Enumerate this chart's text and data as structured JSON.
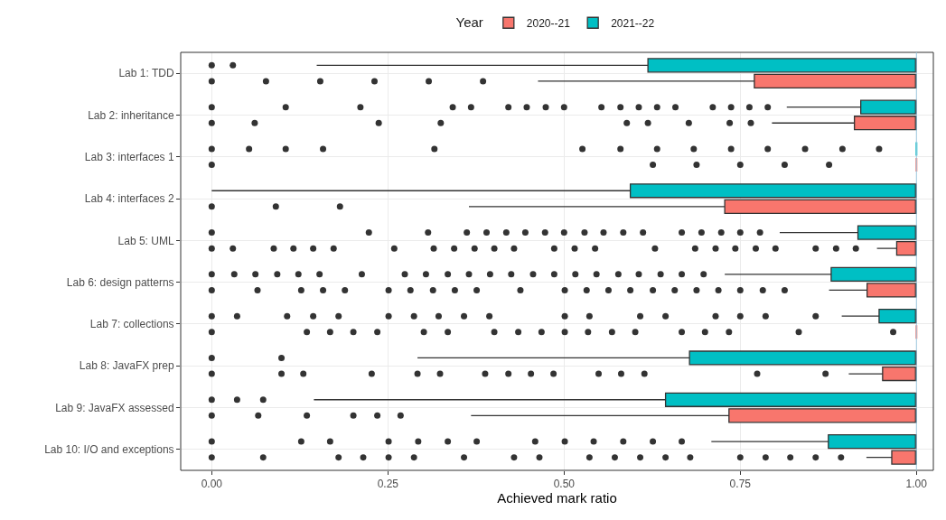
{
  "chart_data": {
    "type": "box",
    "orientation": "horizontal",
    "xlabel": "Achieved mark ratio",
    "legend_title": "Year",
    "legend": "top",
    "grid": true,
    "marker": "circle",
    "categories": [
      "Lab 1: TDD",
      "Lab 2: inheritance",
      "Lab 3: interfaces 1",
      "Lab 4: interfaces 2",
      "Lab 5: UML",
      "Lab 6: design patterns",
      "Lab 7: collections",
      "Lab 8: JavaFX prep",
      "Lab 9: JavaFX assessed",
      "Lab 10: I/O and exceptions"
    ],
    "xlim": [
      -0.044,
      1.024
    ],
    "xticks": [
      {
        "value": 0,
        "label": "0.00"
      },
      {
        "value": 0.25,
        "label": "0.25"
      },
      {
        "value": 0.5,
        "label": "0.50"
      },
      {
        "value": 0.75,
        "label": "0.75"
      },
      {
        "value": 1,
        "label": "1.00"
      }
    ],
    "ref_lines": [
      {
        "axis": "x",
        "value": 1,
        "color": "#9ecae1"
      }
    ],
    "series": [
      {
        "name": "2020--21",
        "color": "#f8766d",
        "boxes": [
          {
            "low": 0.463,
            "q1": 0.77,
            "median": 1,
            "q3": 1,
            "outliers": [
              0,
              0.077,
              0.154,
              0.231,
              0.308,
              0.385
            ]
          },
          {
            "low": 0.795,
            "q1": 0.912,
            "median": 1,
            "q3": 1,
            "outliers": [
              0,
              0.061,
              0.237,
              0.325,
              0.589,
              0.619,
              0.677,
              0.735,
              0.765
            ]
          },
          {
            "low": 1,
            "q1": 1,
            "median": 1,
            "q3": 1,
            "outliers": [
              0,
              0.626,
              0.688,
              0.75,
              0.813,
              0.876
            ]
          },
          {
            "low": 0.365,
            "q1": 0.728,
            "median": 1,
            "q3": 1,
            "outliers": [
              0,
              0.091,
              0.182
            ]
          },
          {
            "low": 0.944,
            "q1": 0.972,
            "median": 1,
            "q3": 1,
            "outliers": [
              0,
              0.03,
              0.088,
              0.116,
              0.144,
              0.173,
              0.259,
              0.315,
              0.344,
              0.373,
              0.401,
              0.429,
              0.486,
              0.515,
              0.544,
              0.629,
              0.686,
              0.715,
              0.743,
              0.772,
              0.8,
              0.857,
              0.886,
              0.914
            ]
          },
          {
            "low": 0.876,
            "q1": 0.93,
            "median": 1,
            "q3": 1,
            "outliers": [
              0,
              0.065,
              0.127,
              0.158,
              0.189,
              0.251,
              0.282,
              0.314,
              0.345,
              0.376,
              0.438,
              0.501,
              0.532,
              0.563,
              0.594,
              0.626,
              0.657,
              0.688,
              0.719,
              0.75,
              0.782,
              0.813
            ]
          },
          {
            "low": 1,
            "q1": 1,
            "median": 1,
            "q3": 1,
            "outliers": [
              0,
              0.135,
              0.168,
              0.201,
              0.235,
              0.301,
              0.335,
              0.401,
              0.435,
              0.468,
              0.501,
              0.534,
              0.568,
              0.601,
              0.667,
              0.7,
              0.734,
              0.833,
              0.967
            ]
          },
          {
            "low": 0.904,
            "q1": 0.952,
            "median": 1,
            "q3": 1,
            "outliers": [
              0,
              0.099,
              0.13,
              0.227,
              0.292,
              0.324,
              0.388,
              0.421,
              0.453,
              0.485,
              0.549,
              0.581,
              0.614,
              0.774,
              0.871
            ]
          },
          {
            "low": 0.368,
            "q1": 0.734,
            "median": 1,
            "q3": 1,
            "outliers": [
              0,
              0.066,
              0.135,
              0.201,
              0.235,
              0.268
            ]
          },
          {
            "low": 0.929,
            "q1": 0.965,
            "median": 1,
            "q3": 1,
            "outliers": [
              0,
              0.073,
              0.18,
              0.215,
              0.251,
              0.287,
              0.358,
              0.429,
              0.465,
              0.536,
              0.572,
              0.608,
              0.644,
              0.679,
              0.75,
              0.786,
              0.821,
              0.857,
              0.893
            ]
          }
        ]
      },
      {
        "name": "2021--22",
        "color": "#00bfc4",
        "boxes": [
          {
            "low": 0.149,
            "q1": 0.619,
            "median": 1,
            "q3": 1,
            "outliers": [
              0,
              0.03
            ]
          },
          {
            "low": 0.816,
            "q1": 0.921,
            "median": 1,
            "q3": 1,
            "outliers": [
              0,
              0.105,
              0.211,
              0.342,
              0.368,
              0.421,
              0.447,
              0.474,
              0.5,
              0.553,
              0.58,
              0.606,
              0.632,
              0.658,
              0.711,
              0.737,
              0.763,
              0.789
            ]
          },
          {
            "low": 1,
            "q1": 1,
            "median": 1,
            "q3": 1,
            "outliers": [
              0,
              0.053,
              0.105,
              0.158,
              0.316,
              0.526,
              0.58,
              0.632,
              0.684,
              0.737,
              0.789,
              0.842,
              0.895,
              0.947
            ]
          },
          {
            "low": 0,
            "q1": 0.594,
            "median": 1,
            "q3": 1
          },
          {
            "low": 0.806,
            "q1": 0.917,
            "median": 1,
            "q3": 1,
            "outliers": [
              0,
              0.223,
              0.307,
              0.362,
              0.39,
              0.418,
              0.445,
              0.473,
              0.5,
              0.529,
              0.556,
              0.584,
              0.612,
              0.667,
              0.695,
              0.723,
              0.75,
              0.778
            ]
          },
          {
            "low": 0.728,
            "q1": 0.879,
            "median": 1,
            "q3": 1,
            "outliers": [
              0,
              0.032,
              0.062,
              0.093,
              0.123,
              0.153,
              0.213,
              0.274,
              0.304,
              0.335,
              0.365,
              0.395,
              0.425,
              0.456,
              0.486,
              0.516,
              0.546,
              0.577,
              0.606,
              0.637,
              0.667,
              0.698
            ]
          },
          {
            "low": 0.894,
            "q1": 0.947,
            "median": 1,
            "q3": 1,
            "outliers": [
              0,
              0.036,
              0.107,
              0.144,
              0.18,
              0.251,
              0.287,
              0.322,
              0.358,
              0.394,
              0.501,
              0.536,
              0.608,
              0.644,
              0.715,
              0.75,
              0.786,
              0.857
            ]
          },
          {
            "low": 0.292,
            "q1": 0.678,
            "median": 1,
            "q3": 1,
            "outliers": [
              0,
              0.099
            ]
          },
          {
            "low": 0.145,
            "q1": 0.644,
            "median": 1,
            "q3": 1,
            "outliers": [
              0,
              0.036,
              0.073
            ]
          },
          {
            "low": 0.709,
            "q1": 0.875,
            "median": 1,
            "q3": 1,
            "outliers": [
              0,
              0.127,
              0.168,
              0.251,
              0.293,
              0.335,
              0.376,
              0.459,
              0.501,
              0.542,
              0.584,
              0.626,
              0.667
            ]
          }
        ]
      }
    ]
  }
}
